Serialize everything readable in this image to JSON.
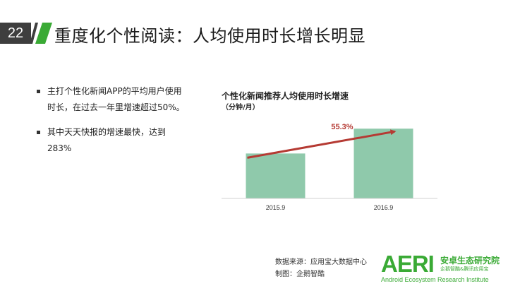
{
  "header": {
    "page_number": "22",
    "title": "重度化个性阅读：人均使用时长增长明显",
    "accent_color": "#3aaa35"
  },
  "bullets": [
    {
      "text": "主打个性化新闻APP的平均用户使用时长，在过去一年里增速超过50%。"
    },
    {
      "text": "其中天天快报的增速最快，达到283%"
    }
  ],
  "chart_data": {
    "type": "bar",
    "title": "个性化新闻推荐人均使用时长增速",
    "unit_label": "（分钟/月）",
    "categories": [
      "2015.9",
      "2016.9"
    ],
    "values": [
      100,
      155.3
    ],
    "growth_label": "55.3%",
    "bar_color": "#8fc9ab",
    "arrow_color": "#b53a33",
    "ylim": [
      0,
      165
    ]
  },
  "footer": {
    "source": "数据来源：应用宝大数据中心",
    "credit": "制图：企鹅智酷"
  },
  "logo": {
    "aeri": "AERI",
    "cn_name": "安卓生态研究院",
    "sub": "企鹅智酷&腾讯应用宝",
    "en_name": "Android Ecosystem Research Institute"
  }
}
